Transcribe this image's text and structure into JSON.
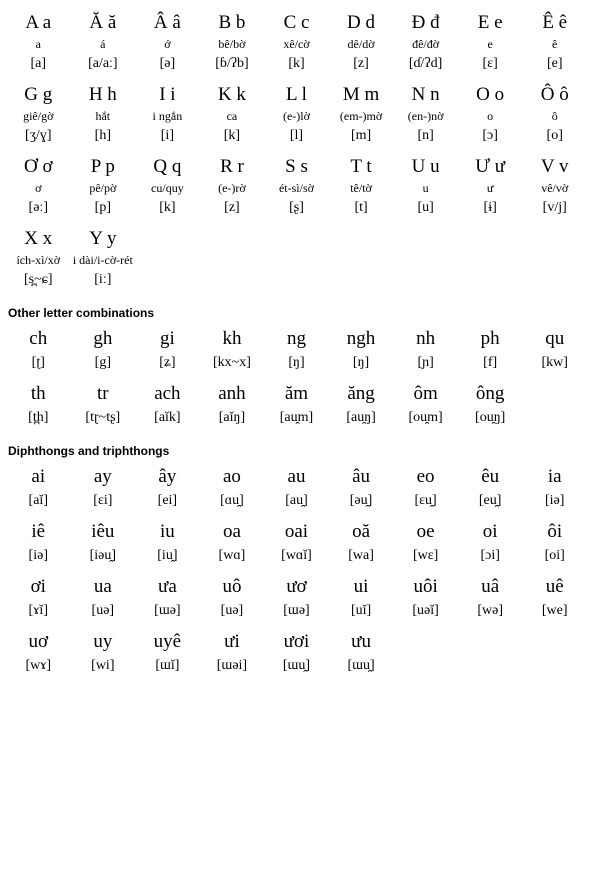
{
  "main_alphabet": [
    [
      {
        "letter": "A a",
        "name": "a",
        "ipa": "[a]"
      },
      {
        "letter": "Ă ă",
        "name": "á",
        "ipa": "[a/aː]"
      },
      {
        "letter": "Â â",
        "name": "ớ",
        "ipa": "[ə]"
      },
      {
        "letter": "B b",
        "name": "bê/bờ",
        "ipa": "[ɓ/ʔb]"
      },
      {
        "letter": "C c",
        "name": "xê/cờ",
        "ipa": "[k]"
      },
      {
        "letter": "D d",
        "name": "dê/dờ",
        "ipa": "[z]"
      },
      {
        "letter": "Đ đ",
        "name": "đê/đờ",
        "ipa": "[ɗ/ʔd]"
      },
      {
        "letter": "E e",
        "name": "e",
        "ipa": "[ɛ]"
      },
      {
        "letter": "Ê ê",
        "name": "ê",
        "ipa": "[e]"
      }
    ],
    [
      {
        "letter": "G g",
        "name": "giê/gờ",
        "ipa": "[ʒ/ɣ]"
      },
      {
        "letter": "H h",
        "name": "hắt",
        "ipa": "[h]"
      },
      {
        "letter": "I i",
        "name": "i ngắn",
        "ipa": "[i]"
      },
      {
        "letter": "K k",
        "name": "ca",
        "ipa": "[k]"
      },
      {
        "letter": "L l",
        "name": "(e-)lờ",
        "ipa": "[l]"
      },
      {
        "letter": "M m",
        "name": "(em-)mờ",
        "ipa": "[m]"
      },
      {
        "letter": "N n",
        "name": "(en-)nờ",
        "ipa": "[n]"
      },
      {
        "letter": "O o",
        "name": "o",
        "ipa": "[ɔ]"
      },
      {
        "letter": "Ô ô",
        "name": "ô",
        "ipa": "[o]"
      }
    ],
    [
      {
        "letter": "Ơ ơ",
        "name": "ơ",
        "ipa": "[əː]"
      },
      {
        "letter": "P p",
        "name": "pê/pờ",
        "ipa": "[p]"
      },
      {
        "letter": "Q q",
        "name": "cu/quy",
        "ipa": "[k]"
      },
      {
        "letter": "R r",
        "name": "(e-)rờ",
        "ipa": "[z]"
      },
      {
        "letter": "S s",
        "name": "ét-sì/sờ",
        "ipa": "[ʂ]"
      },
      {
        "letter": "T t",
        "name": "tê/tờ",
        "ipa": "[t]"
      },
      {
        "letter": "U u",
        "name": "u",
        "ipa": "[u]"
      },
      {
        "letter": "Ư ư",
        "name": "ư",
        "ipa": "[ɨ]"
      },
      {
        "letter": "V v",
        "name": "vê/vờ",
        "ipa": "[v/j]"
      }
    ],
    [
      {
        "letter": "X x",
        "name": "ích-xì/xờ",
        "ipa": "[s̪~ɕ]"
      },
      {
        "letter": "Y y",
        "name": "i dài/i-cờ-rét",
        "ipa": "[iː]"
      }
    ]
  ],
  "heading_other": "Other letter combinations",
  "other_rows": [
    [
      {
        "letter": "ch",
        "ipa": "[ʈ]"
      },
      {
        "letter": "gh",
        "ipa": "[g]"
      },
      {
        "letter": "gi",
        "ipa": "[ʑ]"
      },
      {
        "letter": "kh",
        "ipa": "[kx~x]"
      },
      {
        "letter": "ng",
        "ipa": "[ŋ]"
      },
      {
        "letter": "ngh",
        "ipa": "[ŋ]"
      },
      {
        "letter": "nh",
        "ipa": "[ɲ]"
      },
      {
        "letter": "ph",
        "ipa": "[f]"
      },
      {
        "letter": "qu",
        "ipa": "[kw]"
      }
    ],
    [
      {
        "letter": "th",
        "ipa": "[t̪h]"
      },
      {
        "letter": "tr",
        "ipa": "[tɽ~tʂ]"
      },
      {
        "letter": "ach",
        "ipa": "[aĭk]"
      },
      {
        "letter": "anh",
        "ipa": "[aĭŋ]"
      },
      {
        "letter": "ăm",
        "ipa": "[au̯m]"
      },
      {
        "letter": "ăng",
        "ipa": "[au̯ŋ]"
      },
      {
        "letter": "ôm",
        "ipa": "[ou̯m]"
      },
      {
        "letter": "ông",
        "ipa": "[ou̯ŋ]"
      }
    ]
  ],
  "heading_diph": "Diphthongs and triphthongs",
  "diph_rows": [
    [
      {
        "letter": "ai",
        "ipa": "[aĭ]"
      },
      {
        "letter": "ay",
        "ipa": "[ɛi]"
      },
      {
        "letter": "ây",
        "ipa": "[ei]"
      },
      {
        "letter": "ao",
        "ipa": "[ɑu̯]"
      },
      {
        "letter": "au",
        "ipa": "[au̯]"
      },
      {
        "letter": "âu",
        "ipa": "[əu̯]"
      },
      {
        "letter": "eo",
        "ipa": "[ɛu̯]"
      },
      {
        "letter": "êu",
        "ipa": "[eu̯]"
      },
      {
        "letter": "ia",
        "ipa": "[iə]"
      }
    ],
    [
      {
        "letter": "iê",
        "ipa": "[iə]"
      },
      {
        "letter": "iêu",
        "ipa": "[iəu̯]"
      },
      {
        "letter": "iu",
        "ipa": "[iu̯]"
      },
      {
        "letter": "oa",
        "ipa": "[wɑ]"
      },
      {
        "letter": "oai",
        "ipa": "[wɑĭ]"
      },
      {
        "letter": "oă",
        "ipa": "[wa]"
      },
      {
        "letter": "oe",
        "ipa": "[wɛ]"
      },
      {
        "letter": "oi",
        "ipa": "[ɔi]"
      },
      {
        "letter": "ôi",
        "ipa": "[oi]"
      }
    ],
    [
      {
        "letter": "ơi",
        "ipa": "[ɤĭ]"
      },
      {
        "letter": "ua",
        "ipa": "[uə]"
      },
      {
        "letter": "ưa",
        "ipa": "[ɯə]"
      },
      {
        "letter": "uô",
        "ipa": "[uə]"
      },
      {
        "letter": "ươ",
        "ipa": "[ɯə]"
      },
      {
        "letter": "ui",
        "ipa": "[uĭ]"
      },
      {
        "letter": "uôi",
        "ipa": "[uəĭ]"
      },
      {
        "letter": "uâ",
        "ipa": "[wə]"
      },
      {
        "letter": "uê",
        "ipa": "[we]"
      }
    ],
    [
      {
        "letter": "uơ",
        "ipa": "[wɤ]"
      },
      {
        "letter": "uy",
        "ipa": "[wi]"
      },
      {
        "letter": "uyê",
        "ipa": "[ɯĭ]"
      },
      {
        "letter": "ưi",
        "ipa": "[ɯəi]"
      },
      {
        "letter": "ươi",
        "ipa": "[ɯu̯]"
      },
      {
        "letter": "ưu",
        "ipa": "[ɯu̯]"
      }
    ]
  ]
}
